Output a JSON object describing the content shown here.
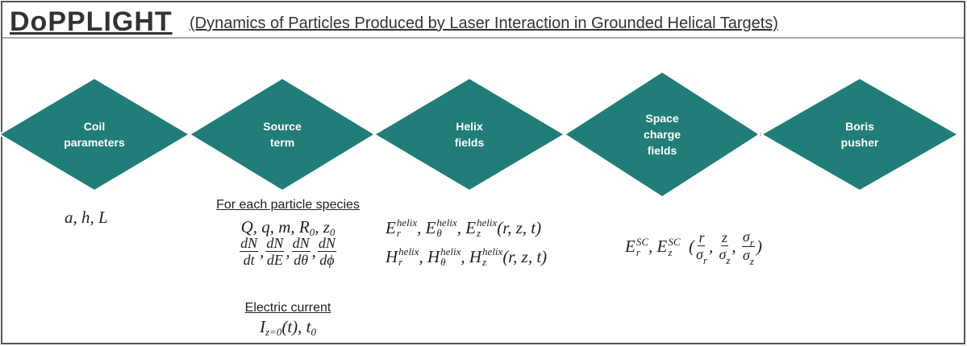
{
  "header": {
    "title": "DoPPLIGHT",
    "subtitle": "(Dynamics of Particles Produced by Laser Interaction in Grounded Helical Targets)"
  },
  "nodes": [
    {
      "label": [
        "Coil",
        "parameters"
      ]
    },
    {
      "label": [
        "Source",
        "term"
      ]
    },
    {
      "label": [
        "Helix",
        "fields"
      ]
    },
    {
      "label": [
        "Space",
        "charge",
        "fields"
      ]
    },
    {
      "label": [
        "Boris",
        "pusher"
      ]
    }
  ],
  "coil": {
    "vars": [
      {
        "t": "a, h, L"
      }
    ]
  },
  "source": {
    "heading": "For each particle species",
    "line1": [
      {
        "t": "Q, q, m, "
      },
      {
        "t": "R",
        "sub": "0"
      },
      {
        "t": ", "
      },
      {
        "t": "z",
        "sub": "0"
      }
    ],
    "line2": [
      {
        "num": [
          {
            "t": "dN"
          }
        ],
        "den": [
          {
            "t": "dt"
          }
        ]
      },
      {
        "t": ","
      },
      {
        "num": [
          {
            "t": "dN"
          }
        ],
        "den": [
          {
            "t": "dE"
          }
        ]
      },
      {
        "t": ","
      },
      {
        "num": [
          {
            "t": "dN"
          }
        ],
        "den": [
          {
            "t": "dθ"
          }
        ]
      },
      {
        "t": ","
      },
      {
        "num": [
          {
            "t": "dN"
          }
        ],
        "den": [
          {
            "t": "dϕ"
          }
        ]
      }
    ],
    "current_heading": "Electric current",
    "current": [
      {
        "t": "I",
        "sub": "z=0"
      },
      {
        "t": "(t), "
      },
      {
        "t": "t",
        "sub": "0"
      }
    ]
  },
  "helix": {
    "line1": [
      {
        "t": "E",
        "sub": "r",
        "sup": "helix"
      },
      {
        "t": ", "
      },
      {
        "t": "E",
        "sub": "θ",
        "sup": "helix"
      },
      {
        "t": ", "
      },
      {
        "t": "E",
        "sub": "z",
        "sup": "helix"
      },
      {
        "t": "(r, z, t)"
      }
    ],
    "line2": [
      {
        "t": "H",
        "sub": "r",
        "sup": "helix"
      },
      {
        "t": ", "
      },
      {
        "t": "H",
        "sub": "θ",
        "sup": "helix"
      },
      {
        "t": ", "
      },
      {
        "t": "H",
        "sub": "z",
        "sup": "helix"
      },
      {
        "t": "(r, z, t)"
      }
    ]
  },
  "space_charge": {
    "line1": [
      {
        "t": "E",
        "sub": "r",
        "sup": "SC"
      },
      {
        "t": ", "
      },
      {
        "t": "E",
        "sub": "z",
        "sup": "SC"
      },
      {
        "t": "  ("
      },
      {
        "num": [
          {
            "t": "r"
          }
        ],
        "den": [
          {
            "t": "σ",
            "sub": "r"
          }
        ]
      },
      {
        "t": ", "
      },
      {
        "num": [
          {
            "t": "z"
          }
        ],
        "den": [
          {
            "t": "σ",
            "sub": "z"
          }
        ]
      },
      {
        "t": ", "
      },
      {
        "num": [
          {
            "t": "σ",
            "sub": "r"
          }
        ],
        "den": [
          {
            "t": "σ",
            "sub": "z"
          }
        ]
      },
      {
        "t": ")"
      }
    ]
  }
}
